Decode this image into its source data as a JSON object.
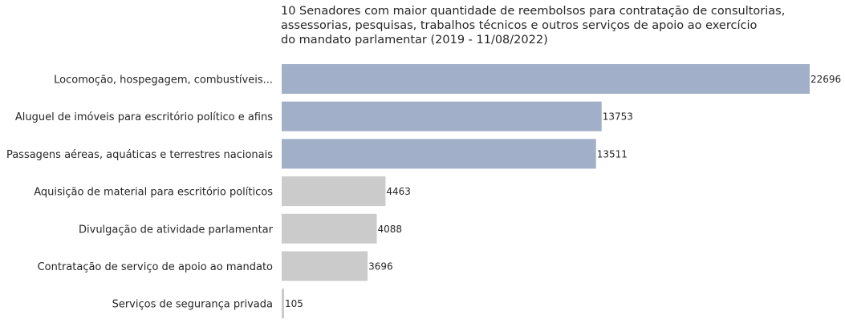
{
  "chart_data": {
    "type": "bar",
    "orientation": "horizontal",
    "title": "10 Senadores com maior quantidade de reembolsos para contratação de consultorias,\nassessorias, pesquisas, trabalhos técnicos e outros serviços de apoio ao exercício\ndo mandato parlamentar (2019 - 11/08/2022)",
    "categories": [
      "Locomoção, hospegagem, combustíveis...",
      "Aluguel de imóveis para escritório político e afins",
      "Passagens aéreas, aquáticas e terrestres nacionais",
      "Aquisição de material para escritório políticos",
      "Divulgação de atividade parlamentar",
      "Contratação de serviço de apoio ao mandato",
      "Serviços de segurança privada"
    ],
    "values": [
      22696,
      13753,
      13511,
      4463,
      4088,
      3696,
      105
    ],
    "value_labels": [
      "22696",
      "13753",
      "13511",
      "4463",
      "4088",
      "3696",
      "105"
    ],
    "highlight_colors": [
      "#a1afc9",
      "#a1afc9",
      "#a1afc9",
      "#cbcbcb",
      "#cbcbcb",
      "#cbcbcb",
      "#cbcbcb"
    ],
    "xlim": [
      0,
      22696
    ],
    "grid": false,
    "legend": "none"
  }
}
